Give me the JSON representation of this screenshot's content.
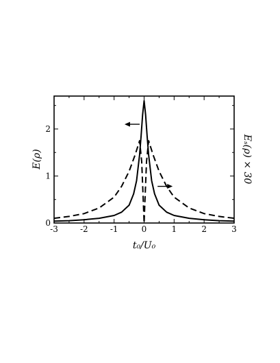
{
  "chart_data": {
    "type": "line",
    "xlabel": "t₀/U₀",
    "ylabel": "E(ρ)",
    "ylabel_right": "Eₛ(ρ) × 30",
    "xlim": [
      -3,
      3
    ],
    "ylim": [
      0,
      2.7
    ],
    "x_ticks": [
      "-3",
      "-2",
      "-1",
      "0",
      "1",
      "2",
      "3"
    ],
    "y_ticks": [
      "0",
      "1",
      "2"
    ],
    "grid": false,
    "series": [
      {
        "line_style": "solid",
        "color": "#000000",
        "axis": "left",
        "x": [
          -3.0,
          -2.5,
          -2.0,
          -1.5,
          -1.0,
          -0.75,
          -0.5,
          -0.35,
          -0.25,
          -0.15,
          -0.1,
          -0.05,
          0.0,
          0.05,
          0.1,
          0.15,
          0.25,
          0.35,
          0.5,
          0.75,
          1.0,
          1.5,
          2.0,
          2.5,
          3.0
        ],
        "y": [
          0.04,
          0.05,
          0.07,
          0.1,
          0.16,
          0.23,
          0.38,
          0.62,
          0.9,
          1.45,
          1.85,
          2.3,
          2.6,
          2.3,
          1.85,
          1.45,
          0.9,
          0.62,
          0.38,
          0.23,
          0.16,
          0.1,
          0.07,
          0.05,
          0.04
        ]
      },
      {
        "line_style": "dashed",
        "color": "#000000",
        "axis": "right",
        "x": [
          -3.0,
          -2.5,
          -2.0,
          -1.5,
          -1.0,
          -0.75,
          -0.5,
          -0.3,
          -0.15,
          -0.08,
          -0.03,
          0.0,
          0.03,
          0.08,
          0.15,
          0.3,
          0.5,
          0.75,
          1.0,
          1.5,
          2.0,
          2.5,
          3.0
        ],
        "y": [
          0.1,
          0.14,
          0.2,
          0.32,
          0.55,
          0.78,
          1.1,
          1.45,
          1.75,
          1.3,
          0.5,
          0.0,
          0.5,
          1.3,
          1.75,
          1.45,
          1.1,
          0.78,
          0.55,
          0.32,
          0.2,
          0.14,
          0.1
        ]
      }
    ],
    "annotations": [
      {
        "type": "arrow",
        "direction": "left",
        "refers_to": "solid",
        "x": -0.4,
        "y": 2.1
      },
      {
        "type": "arrow",
        "direction": "right",
        "refers_to": "dashed",
        "x": 0.7,
        "y": 0.78
      }
    ]
  }
}
